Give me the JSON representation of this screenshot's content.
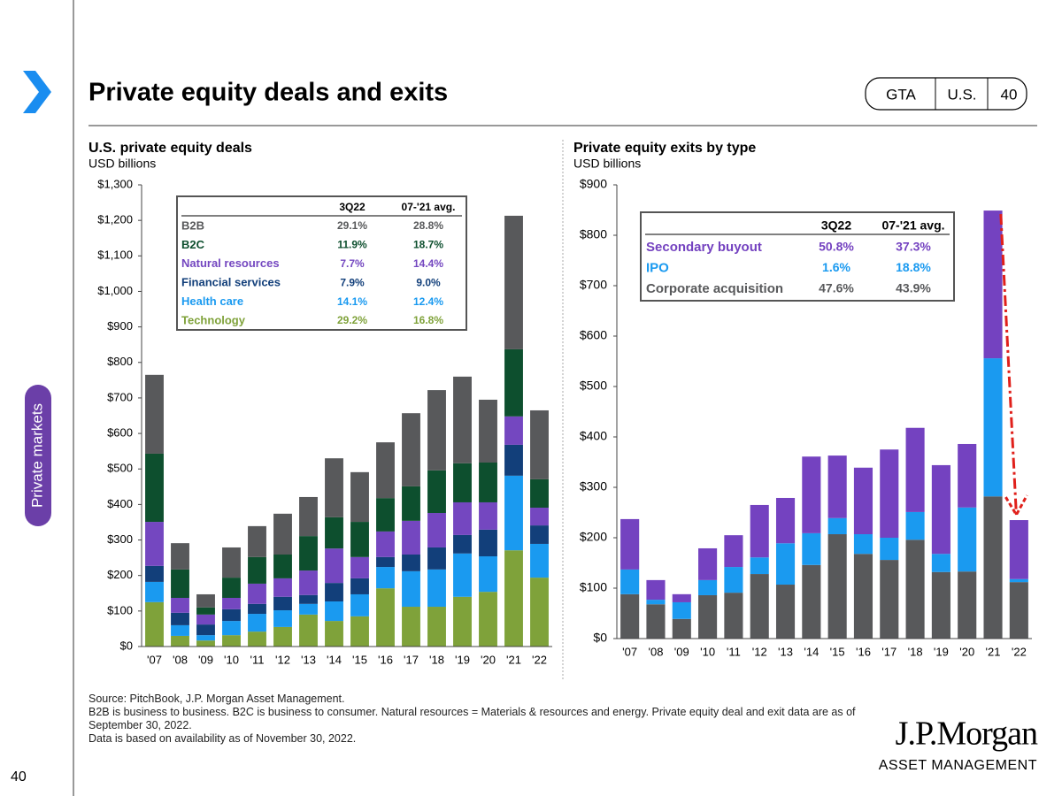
{
  "header": {
    "title": "Private equity deals and exits",
    "tabs": [
      "GTA",
      "U.S.",
      "40"
    ]
  },
  "side_label": "Private markets",
  "page_number": "40",
  "chart_data": [
    {
      "type": "bar",
      "stacked": true,
      "title": "U.S. private equity deals",
      "subtitle": "USD billions",
      "categories": [
        "'07",
        "'08",
        "'09",
        "'10",
        "'11",
        "'12",
        "'13",
        "'14",
        "'15",
        "'16",
        "'17",
        "'18",
        "'19",
        "'20",
        "'21",
        "'22"
      ],
      "series": [
        {
          "name": "B2B",
          "color": "#58595b",
          "values": [
            222,
            74,
            37,
            85,
            87,
            115,
            110,
            166,
            140,
            157,
            206,
            226,
            244,
            177,
            376,
            194
          ]
        },
        {
          "name": "B2C",
          "color": "#0d4f2e",
          "values": [
            192,
            80,
            20,
            57,
            75,
            67,
            97,
            88,
            99,
            94,
            97,
            120,
            110,
            112,
            189,
            80
          ]
        },
        {
          "name": "Natural resources",
          "color": "#7447c0",
          "values": [
            124,
            42,
            28,
            32,
            57,
            52,
            69,
            97,
            60,
            72,
            95,
            97,
            92,
            77,
            80,
            50
          ]
        },
        {
          "name": "Financial services",
          "color": "#123f7a",
          "values": [
            45,
            35,
            30,
            33,
            28,
            38,
            25,
            52,
            45,
            28,
            47,
            62,
            52,
            75,
            87,
            52
          ]
        },
        {
          "name": "Health care",
          "color": "#1a9af0",
          "values": [
            57,
            30,
            15,
            40,
            50,
            47,
            30,
            55,
            62,
            60,
            100,
            105,
            122,
            100,
            210,
            95
          ]
        },
        {
          "name": "Technology",
          "color": "#7fa23a",
          "values": [
            125,
            30,
            17,
            32,
            42,
            55,
            90,
            72,
            85,
            164,
            112,
            112,
            140,
            154,
            271,
            194
          ]
        }
      ],
      "ylim": [
        0,
        1300
      ],
      "yticks": [
        {
          "value": 0,
          "label": "$0"
        },
        {
          "value": 100,
          "label": "$100"
        },
        {
          "value": 200,
          "label": "$200"
        },
        {
          "value": 300,
          "label": "$300"
        },
        {
          "value": 400,
          "label": "$400"
        },
        {
          "value": 500,
          "label": "$500"
        },
        {
          "value": 600,
          "label": "$600"
        },
        {
          "value": 700,
          "label": "$700"
        },
        {
          "value": 800,
          "label": "$800"
        },
        {
          "value": 900,
          "label": "$900"
        },
        {
          "value": 1000,
          "label": "$1,000"
        },
        {
          "value": 1100,
          "label": "$1,100"
        },
        {
          "value": 1200,
          "label": "$1,200"
        },
        {
          "value": 1300,
          "label": "$1,300"
        }
      ],
      "table": {
        "columns": [
          "3Q22",
          "07-'21 avg."
        ],
        "rows": [
          [
            "29.1%",
            "28.8%"
          ],
          [
            "11.9%",
            "18.7%"
          ],
          [
            "7.7%",
            "14.4%"
          ],
          [
            "7.9%",
            "9.0%"
          ],
          [
            "14.1%",
            "12.4%"
          ],
          [
            "29.2%",
            "16.8%"
          ]
        ]
      }
    },
    {
      "type": "bar",
      "stacked": true,
      "title": "Private equity exits by type",
      "subtitle": "USD billions",
      "categories": [
        "'07",
        "'08",
        "'09",
        "'10",
        "'11",
        "'12",
        "'13",
        "'14",
        "'15",
        "'16",
        "'17",
        "'18",
        "'19",
        "'20",
        "'21",
        "'22"
      ],
      "series": [
        {
          "name": "Secondary buyout",
          "color": "#7442c0",
          "values": [
            100,
            39,
            16,
            63,
            63,
            104,
            90,
            152,
            124,
            132,
            175,
            167,
            176,
            126,
            293,
            117
          ]
        },
        {
          "name": "IPO",
          "color": "#1a9af0",
          "values": [
            49,
            9,
            33,
            30,
            51,
            33,
            82,
            63,
            32,
            39,
            44,
            55,
            36,
            127,
            274,
            6
          ]
        },
        {
          "name": "Corporate acquisition",
          "color": "#58595b",
          "values": [
            88,
            68,
            39,
            86,
            91,
            128,
            107,
            146,
            207,
            168,
            156,
            196,
            132,
            133,
            282,
            112
          ]
        }
      ],
      "ylim": [
        0,
        900
      ],
      "yticks": [
        {
          "value": 0,
          "label": "$0"
        },
        {
          "value": 100,
          "label": "$100"
        },
        {
          "value": 200,
          "label": "$200"
        },
        {
          "value": 300,
          "label": "$300"
        },
        {
          "value": 400,
          "label": "$400"
        },
        {
          "value": 500,
          "label": "$500"
        },
        {
          "value": 600,
          "label": "$600"
        },
        {
          "value": 700,
          "label": "$700"
        },
        {
          "value": 800,
          "label": "$800"
        },
        {
          "value": 900,
          "label": "$900"
        }
      ],
      "table": {
        "columns": [
          "3Q22",
          "07-'21 avg."
        ],
        "rows": [
          [
            "50.8%",
            "37.3%"
          ],
          [
            "1.6%",
            "18.8%"
          ],
          [
            "47.6%",
            "43.9%"
          ]
        ]
      }
    }
  ],
  "footnotes": [
    "Source: PitchBook, J.P. Morgan Asset Management.",
    "B2B is business to business. B2C is business to consumer. Natural resources = Materials & resources and energy. Private equity deal and exit data are as of September 30, 2022.",
    "Data is based on availability as of November 30, 2022."
  ],
  "logo": {
    "name": "J.P.Morgan",
    "subtitle": "ASSET MANAGEMENT"
  }
}
